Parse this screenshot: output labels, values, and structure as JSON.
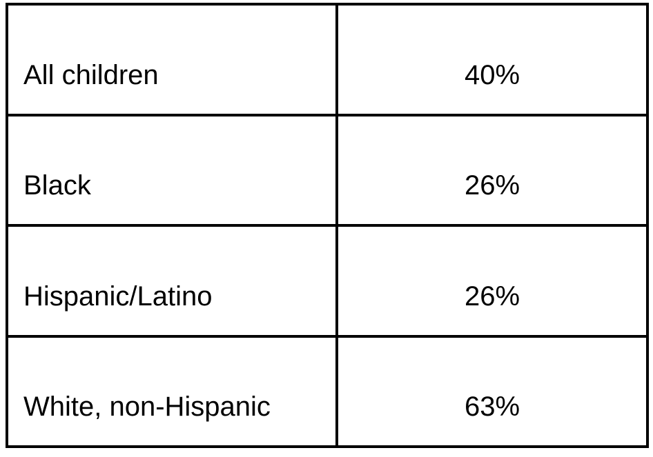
{
  "chart_data": {
    "type": "table",
    "categories": [
      "All children",
      "Black",
      "Hispanic/Latino",
      "White, non-Hispanic"
    ],
    "values": [
      40,
      26,
      26,
      63
    ],
    "value_format": "percent",
    "title": "",
    "layout": "2-column bordered grid, labels left-aligned, percent values centered, no header row"
  },
  "table": {
    "rows": [
      {
        "label": "All children",
        "value": "40%"
      },
      {
        "label": "Black",
        "value": "26%"
      },
      {
        "label": "Hispanic/Latino",
        "value": "26%"
      },
      {
        "label": "White, non-Hispanic",
        "value": "63%"
      }
    ]
  },
  "colors": {
    "border": "#000000",
    "text": "#000000",
    "background": "#ffffff"
  }
}
